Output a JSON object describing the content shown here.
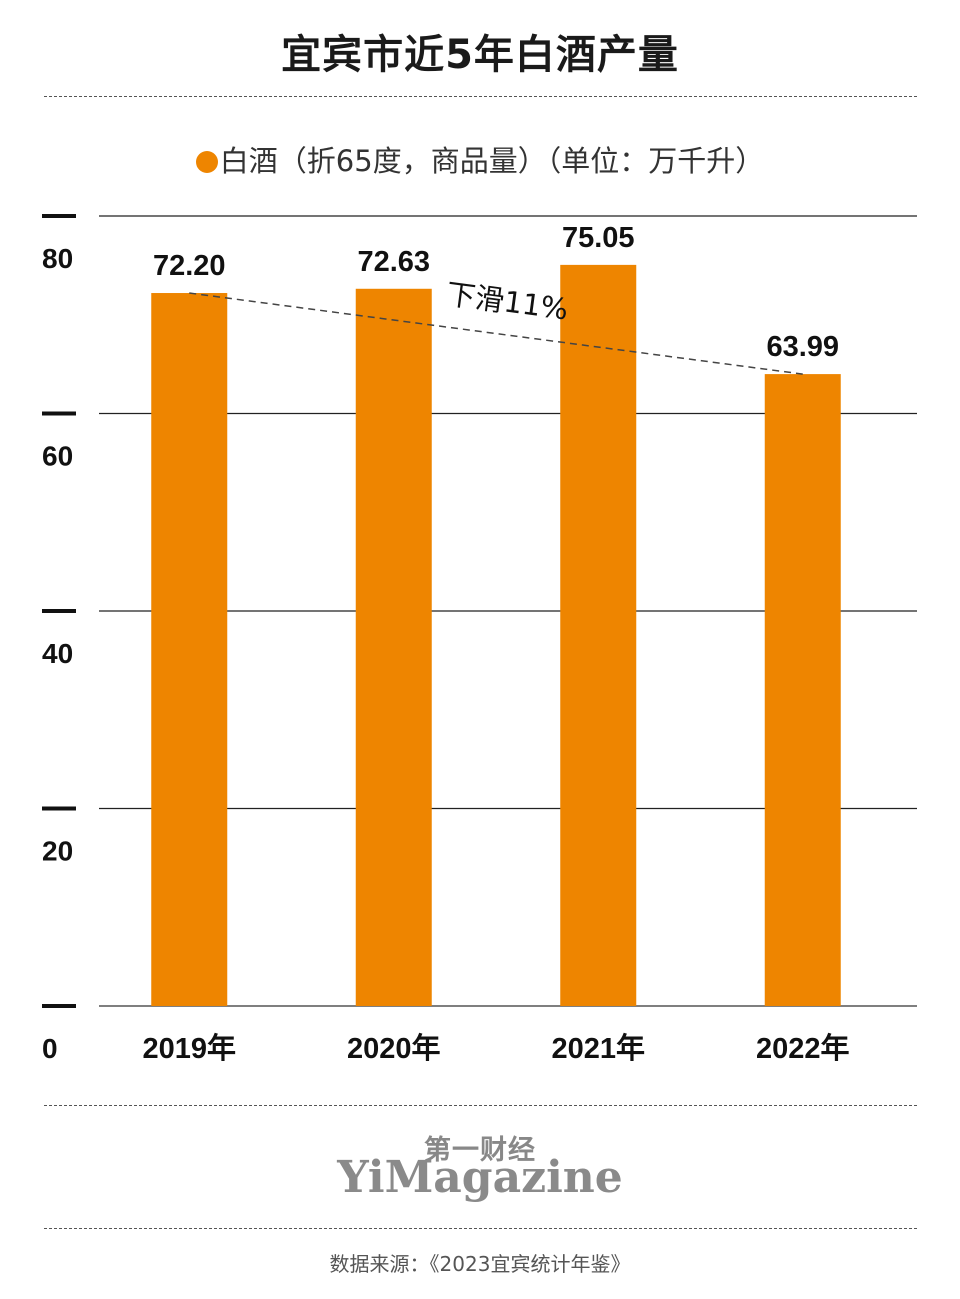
{
  "title": "宜宾市近5年白酒产量",
  "legend": {
    "label": "白酒（折65度，商品量）（单位：万千升）",
    "color": "#EE8500"
  },
  "chart_data": {
    "type": "bar",
    "categories": [
      "2019年",
      "2020年",
      "2021年",
      "2022年"
    ],
    "series": [
      {
        "name": "白酒（折65度，商品量）",
        "values": [
          72.2,
          72.63,
          75.05,
          63.99
        ],
        "color": "#EE8500"
      }
    ],
    "value_labels": [
      "72.20",
      "72.63",
      "75.05",
      "63.99"
    ],
    "ylim": [
      0,
      80
    ],
    "yticks": [
      0,
      20,
      40,
      60,
      80
    ],
    "grid": true,
    "trend_line": {
      "from_category": "2019年",
      "to_category": "2022年",
      "annotation": "下滑11%"
    },
    "xlabel": "",
    "ylabel": ""
  },
  "brand": {
    "chinese": "第一财经",
    "english": "YiMagazine"
  },
  "source": "数据来源：《2023宜宾统计年鉴》"
}
